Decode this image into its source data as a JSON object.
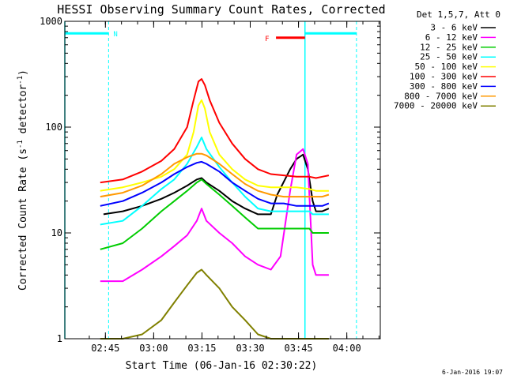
{
  "chart_data": {
    "type": "line",
    "title": "HESSI Observing Summary Count Rates, Corrected",
    "xlabel": "Start Time (06-Jan-16 02:30:22)",
    "ylabel": "Corrected Count Rate (s⁻¹ detector⁻¹)",
    "ylabel_parts": {
      "main": "Corrected Count Rate (s",
      "sup1": "-1",
      "mid": " detector",
      "sup2": "-1",
      "end": ")"
    },
    "y_scale": "log",
    "ylim": [
      1,
      1000
    ],
    "xlim_minutes": [
      2.0,
      100.0
    ],
    "x_ticks": [
      {
        "min": 14.6,
        "label": "02:45"
      },
      {
        "min": 29.6,
        "label": "03:00"
      },
      {
        "min": 44.6,
        "label": "03:15"
      },
      {
        "min": 59.6,
        "label": "03:30"
      },
      {
        "min": 74.6,
        "label": "03:45"
      },
      {
        "min": 89.6,
        "label": "04:00"
      }
    ],
    "y_ticks": [
      {
        "value": 1,
        "label": "1"
      },
      {
        "value": 10,
        "label": "10"
      },
      {
        "value": 100,
        "label": "100"
      },
      {
        "value": 1000,
        "label": "1000"
      }
    ],
    "legend_title": "Det 1,5,7, Att 0",
    "legend_position": "right",
    "series": [
      {
        "name": "3 - 6 keV",
        "color": "#000000",
        "x": [
          14,
          20,
          26,
          32,
          36,
          40,
          43,
          44.5,
          46,
          50,
          54,
          58,
          62,
          66,
          68,
          72,
          74,
          76,
          77.5,
          79,
          80,
          82,
          84
        ],
        "y": [
          15,
          16,
          18,
          21,
          24,
          28,
          32,
          33,
          30,
          25,
          20,
          17,
          15,
          15,
          23,
          40,
          50,
          55,
          40,
          20,
          16,
          16,
          17
        ]
      },
      {
        "name": "6 - 12 keV",
        "color": "#ff00ff",
        "x": [
          13,
          20,
          26,
          32,
          36,
          40,
          43,
          44.5,
          46,
          50,
          54,
          58,
          62,
          66,
          69,
          72,
          74,
          76,
          77.5,
          79,
          80,
          82,
          84
        ],
        "y": [
          3.5,
          3.5,
          4.5,
          6,
          7.5,
          9.5,
          13,
          17,
          13,
          10,
          8,
          6,
          5,
          4.5,
          6,
          25,
          55,
          62,
          45,
          5,
          4,
          4,
          4
        ]
      },
      {
        "name": "12 - 25 keV",
        "color": "#00cc00",
        "x": [
          13,
          20,
          26,
          32,
          36,
          40,
          43,
          44.5,
          46,
          50,
          54,
          58,
          62,
          66,
          70,
          74,
          76,
          78,
          79,
          80,
          82,
          84
        ],
        "y": [
          7,
          8,
          11,
          16,
          20,
          25,
          30,
          32,
          29,
          23,
          18,
          14,
          11,
          11,
          11,
          11,
          11,
          11,
          10,
          10,
          10,
          10
        ]
      },
      {
        "name": "25 - 50 keV",
        "color": "#00ffff",
        "x": [
          13,
          20,
          26,
          32,
          36,
          40,
          43,
          44.5,
          46,
          50,
          54,
          58,
          62,
          66,
          70,
          74,
          76,
          78,
          79,
          80,
          82,
          84
        ],
        "y": [
          12,
          13,
          18,
          26,
          32,
          45,
          65,
          80,
          62,
          42,
          30,
          22,
          17,
          16,
          16,
          16,
          16,
          16,
          15,
          15,
          15,
          15
        ]
      },
      {
        "name": "50 - 100 keV",
        "color": "#ffff00",
        "x": [
          13,
          20,
          26,
          32,
          36,
          40,
          42,
          43.5,
          44.5,
          45.5,
          47,
          50,
          54,
          58,
          62,
          66,
          70,
          74,
          78,
          80,
          82,
          84
        ],
        "y": [
          25,
          27,
          30,
          34,
          40,
          55,
          90,
          160,
          180,
          150,
          90,
          55,
          40,
          32,
          28,
          27,
          27,
          27,
          26,
          25,
          25,
          25
        ]
      },
      {
        "name": "100 - 300 keV",
        "color": "#ff0000",
        "x": [
          13,
          20,
          26,
          32,
          36,
          40,
          42,
          43.5,
          44.5,
          45.5,
          47,
          50,
          54,
          58,
          62,
          66,
          70,
          74,
          78,
          80,
          82,
          84
        ],
        "y": [
          30,
          32,
          38,
          48,
          62,
          100,
          180,
          270,
          285,
          250,
          180,
          110,
          70,
          50,
          40,
          36,
          35,
          34,
          34,
          33,
          34,
          35
        ]
      },
      {
        "name": "300 - 800 keV",
        "color": "#0000ff",
        "x": [
          13,
          20,
          26,
          32,
          36,
          40,
          43,
          44.5,
          46,
          50,
          54,
          58,
          62,
          66,
          70,
          74,
          78,
          80,
          82,
          84
        ],
        "y": [
          18,
          20,
          24,
          30,
          36,
          42,
          46,
          47,
          45,
          38,
          30,
          25,
          21,
          19,
          19,
          18,
          18,
          18,
          18,
          19
        ]
      },
      {
        "name": "800 - 7000 keV",
        "color": "#ff9900",
        "x": [
          13,
          20,
          26,
          32,
          36,
          40,
          43,
          44.5,
          46,
          50,
          54,
          58,
          62,
          66,
          70,
          74,
          78,
          80,
          82,
          84
        ],
        "y": [
          22,
          24,
          28,
          36,
          45,
          52,
          56,
          56,
          54,
          45,
          36,
          29,
          25,
          23,
          22,
          22,
          22,
          22,
          22,
          23
        ]
      },
      {
        "name": "7000 - 20000 keV",
        "color": "#808000",
        "x": [
          13,
          20,
          26,
          32,
          36,
          40,
          43,
          44.5,
          46,
          50,
          54,
          58,
          62,
          66,
          70,
          74,
          78,
          80,
          82,
          84
        ],
        "y": [
          1,
          1,
          1.1,
          1.5,
          2.2,
          3.2,
          4.2,
          4.5,
          4.0,
          3.0,
          2.0,
          1.5,
          1.1,
          1,
          1,
          1,
          1,
          1,
          1,
          1
        ]
      }
    ],
    "attenuator_markers": {
      "color": "#00ffff",
      "solid_lines_min": [
        2.0,
        76.6
      ],
      "dashed_lines_min": [
        15.6,
        92.6
      ],
      "bars": [
        {
          "from": 2.0,
          "to": 15.6,
          "label": "N"
        },
        {
          "from": 76.6,
          "to": 92.6,
          "label": ""
        }
      ]
    },
    "flare_marker": {
      "label": "F",
      "color": "#ff0000",
      "from": 67.6,
      "to": 76.6
    }
  },
  "footer_date": "6-Jan-2016 19:07"
}
